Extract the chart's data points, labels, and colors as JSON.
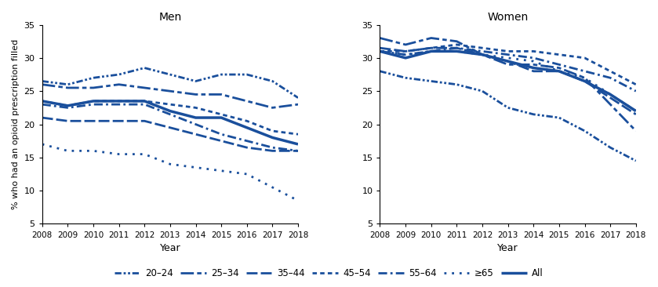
{
  "years": [
    2008,
    2009,
    2010,
    2011,
    2012,
    2013,
    2014,
    2015,
    2016,
    2017,
    2018
  ],
  "men": {
    "20-24": [
      26.5,
      26.0,
      27.0,
      27.5,
      28.5,
      27.5,
      26.5,
      27.5,
      27.5,
      26.5,
      24.0
    ],
    "25-34": [
      26.0,
      25.5,
      25.5,
      26.0,
      25.5,
      25.0,
      24.5,
      24.5,
      23.5,
      22.5,
      23.0
    ],
    "35-44": [
      21.0,
      20.5,
      20.5,
      20.5,
      20.5,
      19.5,
      18.5,
      17.5,
      16.5,
      16.0,
      16.0
    ],
    "45-54": [
      23.5,
      22.8,
      23.5,
      23.5,
      23.5,
      23.0,
      22.5,
      21.5,
      20.5,
      19.0,
      18.5
    ],
    "55-64": [
      23.0,
      22.5,
      23.0,
      23.0,
      23.0,
      21.5,
      20.0,
      18.5,
      17.5,
      16.5,
      16.0
    ],
    ">=65": [
      17.0,
      16.0,
      16.0,
      15.5,
      15.5,
      14.0,
      13.5,
      13.0,
      12.5,
      10.5,
      8.5
    ],
    "All": [
      23.5,
      22.8,
      23.5,
      23.5,
      23.5,
      22.0,
      21.0,
      21.0,
      19.5,
      18.0,
      17.0
    ]
  },
  "women": {
    "20-24": [
      28.0,
      27.0,
      26.5,
      26.0,
      25.0,
      22.5,
      21.5,
      21.0,
      19.0,
      16.5,
      14.5
    ],
    "25-34": [
      33.0,
      32.0,
      33.0,
      32.5,
      30.5,
      29.0,
      29.0,
      28.5,
      27.0,
      23.0,
      19.0
    ],
    "35-44": [
      31.5,
      31.0,
      31.5,
      31.5,
      30.5,
      29.5,
      28.0,
      28.0,
      26.5,
      24.0,
      21.5
    ],
    "45-54": [
      31.0,
      31.0,
      31.5,
      32.0,
      31.5,
      31.0,
      31.0,
      30.5,
      30.0,
      28.0,
      26.0
    ],
    "55-64": [
      31.0,
      30.5,
      31.0,
      31.5,
      31.0,
      30.5,
      30.0,
      29.0,
      28.0,
      27.0,
      25.0
    ],
    ">=65": [
      31.0,
      30.5,
      31.0,
      31.0,
      30.5,
      30.0,
      29.5,
      28.0,
      27.0,
      24.5,
      22.0
    ],
    "All": [
      31.0,
      30.0,
      31.0,
      31.0,
      30.5,
      29.5,
      28.5,
      28.0,
      26.5,
      24.5,
      22.0
    ]
  },
  "color": "#1a4f9c",
  "ylim": [
    5,
    35
  ],
  "yticks": [
    5,
    10,
    15,
    20,
    25,
    30,
    35
  ],
  "xlabel": "Year",
  "ylabel": "% who had an opioid prescription filled",
  "title_men": "Men",
  "title_women": "Women",
  "legend_labels": [
    "20–24",
    "25–34",
    "35–44",
    "45–54",
    "55–64",
    "≥65",
    "All"
  ]
}
